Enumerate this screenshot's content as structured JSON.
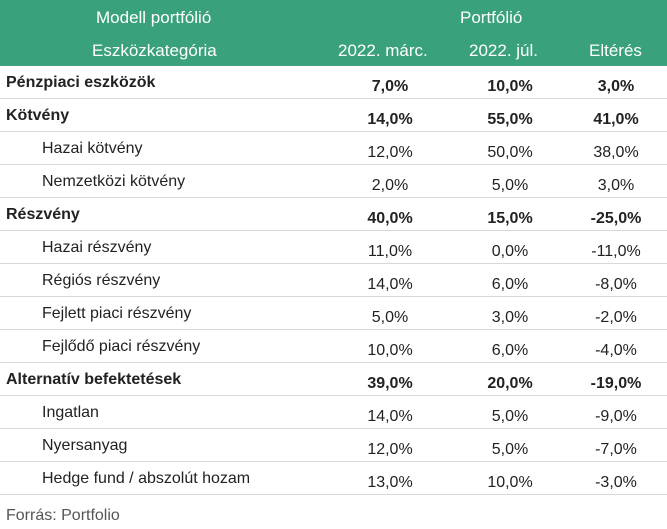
{
  "header": {
    "model_label": "Modell portfólió",
    "category_label": "Eszközkategória",
    "portfolio_label": "Portfólió",
    "col_march": "2022. márc.",
    "col_july": "2022. júl.",
    "col_diff": "Eltérés"
  },
  "rows": [
    {
      "label": "Pénzpiaci eszközök",
      "march": "7,0%",
      "july": "10,0%",
      "diff": "3,0%"
    },
    {
      "label": "Kötvény",
      "march": "14,0%",
      "july": "55,0%",
      "diff": "41,0%"
    },
    {
      "label": "Hazai kötvény",
      "march": "12,0%",
      "july": "50,0%",
      "diff": "38,0%"
    },
    {
      "label": "Nemzetközi kötvény",
      "march": "2,0%",
      "july": "5,0%",
      "diff": "3,0%"
    },
    {
      "label": "Részvény",
      "march": "40,0%",
      "july": "15,0%",
      "diff": "-25,0%"
    },
    {
      "label": "Hazai részvény",
      "march": "11,0%",
      "july": "0,0%",
      "diff": "-11,0%"
    },
    {
      "label": "Régiós részvény",
      "march": "14,0%",
      "july": "6,0%",
      "diff": "-8,0%"
    },
    {
      "label": "Fejlett piaci részvény",
      "march": "5,0%",
      "july": "3,0%",
      "diff": "-2,0%"
    },
    {
      "label": "Fejlődő piaci részvény",
      "march": "10,0%",
      "july": "6,0%",
      "diff": "-4,0%"
    },
    {
      "label": "Alternatív befektetések",
      "march": "39,0%",
      "july": "20,0%",
      "diff": "-19,0%"
    },
    {
      "label": "Ingatlan",
      "march": "14,0%",
      "july": "5,0%",
      "diff": "-9,0%"
    },
    {
      "label": "Nyersanyag",
      "march": "12,0%",
      "july": "5,0%",
      "diff": "-7,0%"
    },
    {
      "label": "Hedge fund / abszolút hozam",
      "march": "13,0%",
      "july": "10,0%",
      "diff": "-3,0%"
    }
  ],
  "source": "Forrás: Portfolio",
  "colors": {
    "header_bg": "#3aa27a",
    "header_text": "#ffffff",
    "divider": "#d9d9d9"
  }
}
